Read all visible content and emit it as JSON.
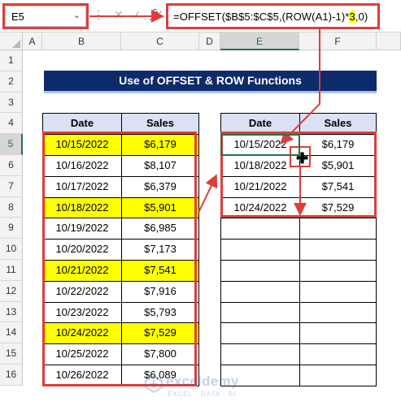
{
  "formula_bar": {
    "name_box": "E5",
    "name_box_arrow": "⌄",
    "separator": "⋮",
    "cancel_glyph": "✕",
    "enter_glyph": "✓",
    "fx_label": "fx",
    "formula_main": "=OFFSET($B$5:$C$5,(ROW(A1)-1)*",
    "formula_highlight": "3",
    "formula_end": ",0)"
  },
  "columns": [
    "A",
    "B",
    "C",
    "D",
    "E",
    "F"
  ],
  "rows": [
    "1",
    "2",
    "3",
    "4",
    "5",
    "6",
    "7",
    "8",
    "9",
    "10",
    "11",
    "12",
    "13",
    "14",
    "15",
    "16"
  ],
  "title": "Use of OFFSET & ROW Functions",
  "left_table": {
    "headers": [
      "Date",
      "Sales"
    ],
    "rows": [
      {
        "date": "10/15/2022",
        "sales": "$6,179",
        "highlight": true
      },
      {
        "date": "10/16/2022",
        "sales": "$8,107",
        "highlight": false
      },
      {
        "date": "10/17/2022",
        "sales": "$6,379",
        "highlight": false
      },
      {
        "date": "10/18/2022",
        "sales": "$5,901",
        "highlight": true
      },
      {
        "date": "10/19/2022",
        "sales": "$6,985",
        "highlight": false
      },
      {
        "date": "10/20/2022",
        "sales": "$7,173",
        "highlight": false
      },
      {
        "date": "10/21/2022",
        "sales": "$7,541",
        "highlight": true
      },
      {
        "date": "10/22/2022",
        "sales": "$7,916",
        "highlight": false
      },
      {
        "date": "10/23/2022",
        "sales": "$5,793",
        "highlight": false
      },
      {
        "date": "10/24/2022",
        "sales": "$7,529",
        "highlight": true
      },
      {
        "date": "10/25/2022",
        "sales": "$7,800",
        "highlight": false
      },
      {
        "date": "10/26/2022",
        "sales": "$6,089",
        "highlight": false
      }
    ]
  },
  "right_table": {
    "headers": [
      "Date",
      "Sales"
    ],
    "rows": [
      {
        "date": "10/15/2022",
        "sales": "$6,179"
      },
      {
        "date": "10/18/2022",
        "sales": "$5,901"
      },
      {
        "date": "10/21/2022",
        "sales": "$7,541"
      },
      {
        "date": "10/24/2022",
        "sales": "$7,529"
      },
      {
        "date": "",
        "sales": ""
      },
      {
        "date": "",
        "sales": ""
      },
      {
        "date": "",
        "sales": ""
      },
      {
        "date": "",
        "sales": ""
      },
      {
        "date": "",
        "sales": ""
      },
      {
        "date": "",
        "sales": ""
      },
      {
        "date": "",
        "sales": ""
      },
      {
        "date": "",
        "sales": ""
      }
    ]
  },
  "watermark": {
    "name": "exceldemy",
    "tagline": "EXCEL · DATA · BI"
  },
  "colors": {
    "title_bg": "#0d2a6b",
    "header_bg": "#d9e1f2",
    "highlight": "#ffff00",
    "annotation_red": "#e03c3c",
    "excel_green": "#217346"
  },
  "icons": {
    "name_box_dropdown": "chevron-down-icon",
    "cancel": "close-icon",
    "enter": "checkmark-icon",
    "function": "fx-icon",
    "cursor": "crosshair-plus-icon",
    "watermark_logo": "exceldemy-logo-icon"
  }
}
